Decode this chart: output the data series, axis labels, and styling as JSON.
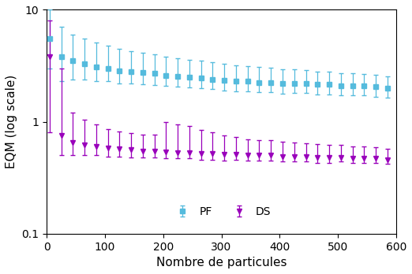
{
  "pf_x": [
    5,
    25,
    45,
    65,
    85,
    105,
    125,
    145,
    165,
    185,
    205,
    225,
    245,
    265,
    285,
    305,
    325,
    345,
    365,
    385,
    405,
    425,
    445,
    465,
    485,
    505,
    525,
    545,
    565,
    585
  ],
  "pf_y": [
    5.5,
    3.8,
    3.5,
    3.3,
    3.1,
    3.0,
    2.85,
    2.8,
    2.75,
    2.7,
    2.6,
    2.55,
    2.5,
    2.45,
    2.4,
    2.35,
    2.3,
    2.3,
    2.25,
    2.25,
    2.2,
    2.2,
    2.2,
    2.15,
    2.15,
    2.1,
    2.1,
    2.1,
    2.05,
    2.0
  ],
  "pf_err_lo": [
    2.5,
    1.5,
    1.1,
    0.9,
    0.8,
    0.7,
    0.65,
    0.6,
    0.58,
    0.56,
    0.52,
    0.5,
    0.48,
    0.46,
    0.45,
    0.44,
    0.43,
    0.42,
    0.42,
    0.41,
    0.41,
    0.4,
    0.4,
    0.39,
    0.39,
    0.38,
    0.38,
    0.38,
    0.37,
    0.36
  ],
  "pf_err_hi": [
    4.5,
    3.2,
    2.5,
    2.2,
    2.0,
    1.8,
    1.65,
    1.5,
    1.4,
    1.3,
    1.2,
    1.15,
    1.1,
    1.05,
    1.0,
    0.95,
    0.9,
    0.85,
    0.82,
    0.78,
    0.75,
    0.72,
    0.7,
    0.67,
    0.65,
    0.62,
    0.6,
    0.58,
    0.56,
    0.54
  ],
  "ds_x": [
    5,
    25,
    45,
    65,
    85,
    105,
    125,
    145,
    165,
    185,
    205,
    225,
    245,
    265,
    285,
    305,
    325,
    345,
    365,
    385,
    405,
    425,
    445,
    465,
    485,
    505,
    525,
    545,
    565,
    585
  ],
  "ds_y": [
    3.8,
    0.75,
    0.65,
    0.62,
    0.6,
    0.58,
    0.57,
    0.56,
    0.55,
    0.55,
    0.54,
    0.53,
    0.53,
    0.52,
    0.52,
    0.51,
    0.51,
    0.5,
    0.5,
    0.5,
    0.49,
    0.49,
    0.49,
    0.48,
    0.48,
    0.48,
    0.47,
    0.47,
    0.47,
    0.46
  ],
  "ds_err_lo": [
    3.0,
    0.25,
    0.15,
    0.12,
    0.1,
    0.09,
    0.08,
    0.08,
    0.07,
    0.07,
    0.07,
    0.06,
    0.06,
    0.06,
    0.06,
    0.06,
    0.05,
    0.05,
    0.05,
    0.05,
    0.05,
    0.05,
    0.05,
    0.05,
    0.05,
    0.04,
    0.04,
    0.04,
    0.04,
    0.04
  ],
  "ds_err_hi": [
    4.2,
    2.25,
    0.55,
    0.42,
    0.35,
    0.28,
    0.25,
    0.23,
    0.22,
    0.22,
    0.45,
    0.42,
    0.38,
    0.33,
    0.28,
    0.25,
    0.22,
    0.2,
    0.19,
    0.18,
    0.17,
    0.16,
    0.15,
    0.15,
    0.14,
    0.14,
    0.13,
    0.13,
    0.12,
    0.11
  ],
  "pf_color": "#55bbdd",
  "ds_color": "#9900bb",
  "ylabel": "EQM (log scale)",
  "xlabel": "Nombre de particules",
  "ylim_lo": 0.1,
  "ylim_hi": 10,
  "xlim_lo": 0,
  "xlim_hi": 600,
  "legend_pf": "PF",
  "legend_ds": "DS",
  "yticks": [
    0.1,
    1,
    10
  ],
  "xticks": [
    0,
    100,
    200,
    300,
    400,
    500,
    600
  ]
}
